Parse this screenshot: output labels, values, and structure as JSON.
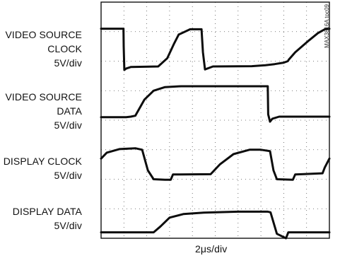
{
  "chart_data": {
    "type": "line",
    "title": "",
    "figure_id": "MAX3816A toc09",
    "xlabel": "2μs/div",
    "x_divisions": 10,
    "y_divisions": 8,
    "grid": "dotted",
    "series": [
      {
        "name": "VIDEO SOURCE CLOCK",
        "label_lines": [
          "VIDEO SOURCE",
          "CLOCK",
          "5V/div"
        ],
        "x": [
          0,
          0.6,
          0.72,
          0.98,
          0.99,
          1.02,
          1.1,
          1.3,
          2.5,
          2.9,
          3.2,
          3.4,
          3.9,
          4.3,
          4.4,
          4.46,
          4.55,
          4.9,
          6.6,
          7.2,
          7.6,
          8.0,
          8.18,
          8.22,
          8.5,
          9.1,
          9.5,
          9.8,
          10.0
        ],
        "y": [
          7.1,
          7.1,
          7.1,
          7.1,
          6.5,
          5.7,
          5.75,
          5.8,
          5.82,
          6.1,
          6.6,
          6.9,
          7.08,
          7.08,
          7.08,
          6.3,
          5.72,
          5.82,
          5.83,
          5.86,
          5.9,
          5.95,
          6.0,
          6.05,
          6.3,
          6.7,
          6.95,
          7.08,
          7.1
        ]
      },
      {
        "name": "VIDEO SOURCE DATA",
        "label_lines": [
          "VIDEO SOURCE",
          "DATA",
          "5V/div"
        ],
        "x": [
          0,
          1.1,
          1.3,
          1.5,
          1.9,
          2.3,
          2.8,
          3.5,
          5.0,
          6.7,
          7.3,
          7.32,
          7.4,
          7.5,
          7.8,
          10.0
        ],
        "y": [
          4.1,
          4.1,
          4.12,
          4.15,
          4.7,
          5.0,
          5.12,
          5.15,
          5.15,
          5.15,
          5.15,
          4.2,
          3.95,
          4.05,
          4.12,
          4.12
        ]
      },
      {
        "name": "DISPLAY CLOCK",
        "label_lines": [
          "DISPLAY CLOCK",
          "5V/div"
        ],
        "x": [
          0,
          0.25,
          0.8,
          1.5,
          1.8,
          2.05,
          2.3,
          2.8,
          3.05,
          3.15,
          4.8,
          5.2,
          5.8,
          6.5,
          7.0,
          7.4,
          7.55,
          7.7,
          8.4,
          8.5,
          8.8,
          9.7,
          9.8,
          10.0
        ],
        "y": [
          2.7,
          2.9,
          3.02,
          3.05,
          3.0,
          2.3,
          2.0,
          1.98,
          1.98,
          2.16,
          2.17,
          2.5,
          2.85,
          3.0,
          3.0,
          2.95,
          2.3,
          2.0,
          1.98,
          2.16,
          2.17,
          2.2,
          2.4,
          2.7
        ]
      },
      {
        "name": "DISPLAY DATA",
        "label_lines": [
          "DISPLAY DATA",
          "5V/div"
        ],
        "x": [
          0,
          2.3,
          2.6,
          3.0,
          3.6,
          4.5,
          6.0,
          7.3,
          7.42,
          7.7,
          8.1,
          8.2,
          8.5,
          10.0
        ],
        "y": [
          0.2,
          0.2,
          0.4,
          0.7,
          0.82,
          0.87,
          0.9,
          0.9,
          0.88,
          0.15,
          0.0,
          0.2,
          0.2,
          0.2
        ]
      }
    ]
  }
}
